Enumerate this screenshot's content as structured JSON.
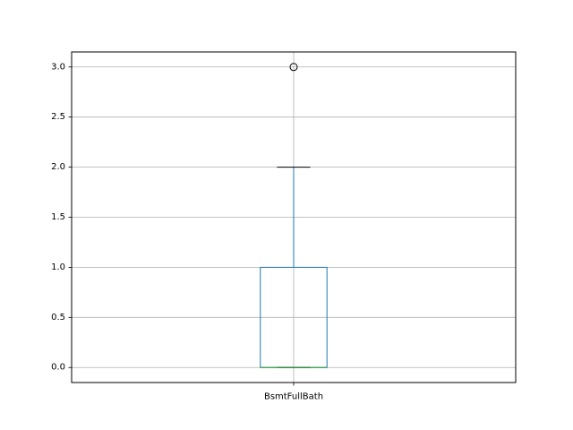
{
  "chart_data": {
    "type": "box",
    "title": "",
    "xlabel": "",
    "ylabel": "",
    "categories": [
      "BsmtFullBath"
    ],
    "boxes": [
      {
        "category": "BsmtFullBath",
        "whisker_low": 0.0,
        "q1": 0.0,
        "median": 0.0,
        "q3": 1.0,
        "whisker_high": 2.0,
        "outliers": [
          3.0
        ]
      }
    ],
    "ylim": [
      -0.15,
      3.15
    ],
    "yticks": [
      0.0,
      0.5,
      1.0,
      1.5,
      2.0,
      2.5,
      3.0
    ],
    "ytick_labels": [
      "0.0",
      "0.5",
      "1.0",
      "1.5",
      "2.0",
      "2.5",
      "3.0"
    ],
    "grid": true,
    "colors": {
      "box": "#1f77b4",
      "median": "#2ca02c",
      "whisker": "#1f77b4",
      "cap": "#000000",
      "grid": "#b0b0b0",
      "outlier": "#000000"
    }
  }
}
